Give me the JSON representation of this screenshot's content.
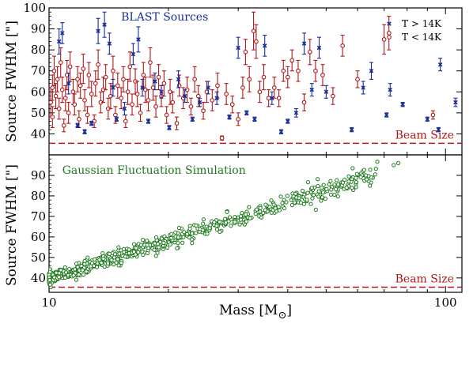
{
  "chart_data": [
    {
      "type": "scatter",
      "x_scale": "log",
      "xlim": [
        10,
        110
      ],
      "ylim": [
        30,
        100
      ],
      "ylabel": "Source FWHM [\"]",
      "yticks": [
        "40",
        "50",
        "60",
        "70",
        "80",
        "90",
        "100"
      ],
      "annotations": {
        "title_text": "BLAST Sources",
        "title_color": "#1a2c9a",
        "beam_label": "Beam Size",
        "beam_value": 35.5
      },
      "legend_position": "top-right",
      "series": [
        {
          "name": "T > 14K",
          "legend": "T > 14K",
          "color": "#1a2c9a",
          "marker": "x",
          "points": [
            [
              10.6,
              84,
              6
            ],
            [
              10.8,
              88,
              5
            ],
            [
              11.2,
              64,
              5
            ],
            [
              11.8,
              44,
              1
            ],
            [
              12.3,
              41,
              1
            ],
            [
              12.8,
              45,
              1
            ],
            [
              13.3,
              89,
              6
            ],
            [
              13.8,
              92,
              6
            ],
            [
              14.2,
              83,
              5
            ],
            [
              14.5,
              62,
              4
            ],
            [
              14.8,
              47,
              1
            ],
            [
              15.5,
              52,
              3
            ],
            [
              16.3,
              78,
              5
            ],
            [
              16.8,
              85,
              6
            ],
            [
              17.2,
              62,
              4
            ],
            [
              17.8,
              46,
              1
            ],
            [
              18.5,
              65,
              4
            ],
            [
              19.2,
              60,
              3
            ],
            [
              20.1,
              43,
              1
            ],
            [
              21.2,
              66,
              4
            ],
            [
              22.0,
              58,
              3
            ],
            [
              23.0,
              47,
              1
            ],
            [
              24.0,
              55,
              2
            ],
            [
              25.2,
              62,
              3
            ],
            [
              26.5,
              57,
              3
            ],
            [
              28.5,
              48,
              1
            ],
            [
              30.0,
              81,
              5
            ],
            [
              31.5,
              50,
              1
            ],
            [
              33.0,
              47,
              1
            ],
            [
              35.0,
              82,
              5
            ],
            [
              36.5,
              57,
              3
            ],
            [
              38.5,
              41,
              1
            ],
            [
              40.0,
              46,
              1
            ],
            [
              42.0,
              50,
              2
            ],
            [
              44.0,
              83,
              5
            ],
            [
              46.0,
              61,
              3
            ],
            [
              48.0,
              81,
              5
            ],
            [
              50.0,
              60,
              3
            ],
            [
              58.0,
              42,
              1
            ],
            [
              62.0,
              62,
              3
            ],
            [
              65.0,
              70,
              4
            ],
            [
              71.0,
              49,
              1
            ],
            [
              72.5,
              61,
              3
            ],
            [
              78.0,
              54,
              1
            ],
            [
              90.0,
              47,
              1
            ],
            [
              96.0,
              42,
              1
            ],
            [
              97.0,
              73,
              3
            ],
            [
              106.0,
              55,
              2
            ]
          ]
        },
        {
          "name": "T < 14K",
          "legend": "T < 14K",
          "color": "#b01818",
          "marker": "open-circle",
          "points": [
            [
              10.1,
              55,
              7
            ],
            [
              10.2,
              62,
              6
            ],
            [
              10.2,
              48,
              5
            ],
            [
              10.3,
              70,
              7
            ],
            [
              10.4,
              58,
              6
            ],
            [
              10.5,
              66,
              6
            ],
            [
              10.6,
              52,
              5
            ],
            [
              10.7,
              74,
              7
            ],
            [
              10.8,
              61,
              6
            ],
            [
              10.9,
              44,
              3
            ],
            [
              11.0,
              57,
              6
            ],
            [
              11.1,
              68,
              7
            ],
            [
              11.2,
              50,
              5
            ],
            [
              11.3,
              72,
              7
            ],
            [
              11.5,
              60,
              6
            ],
            [
              11.6,
              54,
              5
            ],
            [
              11.8,
              66,
              6
            ],
            [
              11.9,
              47,
              4
            ],
            [
              12.0,
              63,
              6
            ],
            [
              12.2,
              71,
              7
            ],
            [
              12.3,
              56,
              5
            ],
            [
              12.5,
              49,
              4
            ],
            [
              12.6,
              68,
              6
            ],
            [
              12.8,
              59,
              6
            ],
            [
              13.0,
              46,
              3
            ],
            [
              13.1,
              64,
              6
            ],
            [
              13.3,
              73,
              7
            ],
            [
              13.5,
              55,
              5
            ],
            [
              13.7,
              61,
              6
            ],
            [
              13.9,
              67,
              6
            ],
            [
              14.1,
              52,
              5
            ],
            [
              14.3,
              58,
              6
            ],
            [
              14.5,
              70,
              7
            ],
            [
              14.7,
              49,
              4
            ],
            [
              14.9,
              63,
              6
            ],
            [
              15.2,
              57,
              5
            ],
            [
              15.4,
              66,
              6
            ],
            [
              15.6,
              46,
              3
            ],
            [
              15.8,
              60,
              6
            ],
            [
              16.0,
              72,
              7
            ],
            [
              16.2,
              54,
              5
            ],
            [
              16.5,
              65,
              6
            ],
            [
              16.7,
              59,
              6
            ],
            [
              17.0,
              50,
              4
            ],
            [
              17.3,
              68,
              6
            ],
            [
              17.5,
              61,
              6
            ],
            [
              17.8,
              56,
              5
            ],
            [
              18.0,
              74,
              7
            ],
            [
              18.3,
              62,
              6
            ],
            [
              18.6,
              53,
              5
            ],
            [
              18.9,
              67,
              6
            ],
            [
              19.2,
              58,
              5
            ],
            [
              19.5,
              64,
              6
            ],
            [
              19.8,
              49,
              4
            ],
            [
              20.2,
              60,
              6
            ],
            [
              20.5,
              55,
              5
            ],
            [
              21.0,
              45,
              3
            ],
            [
              21.3,
              63,
              5
            ],
            [
              21.8,
              57,
              5
            ],
            [
              22.3,
              61,
              6
            ],
            [
              22.8,
              53,
              4
            ],
            [
              23.3,
              66,
              6
            ],
            [
              23.8,
              58,
              5
            ],
            [
              24.5,
              51,
              4
            ],
            [
              25.0,
              60,
              5
            ],
            [
              25.8,
              56,
              5
            ],
            [
              26.6,
              63,
              6
            ],
            [
              27.3,
              38,
              1
            ],
            [
              28.0,
              59,
              5
            ],
            [
              29.0,
              54,
              4
            ],
            [
              30.0,
              47,
              3
            ],
            [
              30.8,
              62,
              5
            ],
            [
              31.3,
              79,
              6
            ],
            [
              32.0,
              66,
              6
            ],
            [
              32.8,
              89,
              9
            ],
            [
              33.3,
              84,
              8
            ],
            [
              34.0,
              60,
              5
            ],
            [
              34.8,
              67,
              6
            ],
            [
              35.8,
              57,
              4
            ],
            [
              37.0,
              62,
              5
            ],
            [
              38.0,
              57,
              4
            ],
            [
              39.0,
              70,
              5
            ],
            [
              40.0,
              67,
              5
            ],
            [
              41.0,
              75,
              5
            ],
            [
              42.5,
              70,
              5
            ],
            [
              44.0,
              55,
              4
            ],
            [
              45.5,
              79,
              6
            ],
            [
              47.0,
              70,
              5
            ],
            [
              49.0,
              68,
              5
            ],
            [
              52.0,
              58,
              4
            ],
            [
              55.0,
              82,
              5
            ],
            [
              60.0,
              66,
              4
            ],
            [
              70.0,
              85,
              7
            ],
            [
              72.0,
              88,
              8
            ],
            [
              93.0,
              49,
              2
            ]
          ]
        }
      ]
    },
    {
      "type": "scatter",
      "x_scale": "log",
      "xlim": [
        10,
        110
      ],
      "ylim": [
        33,
        100
      ],
      "xlabel": "Mass [M",
      "xlabel_sub": "⊙",
      "xlabel_close": "]",
      "ylabel": "Source FWHM [\"]",
      "yticks": [
        "40",
        "50",
        "60",
        "70",
        "80",
        "90"
      ],
      "xticks": [
        "10",
        "100"
      ],
      "annotations": {
        "title_text": "Gaussian Fluctuation Simulation",
        "title_color": "#1f7a1f",
        "beam_label": "Beam Size",
        "beam_value": 35.5
      },
      "series": [
        {
          "color": "#1f7a1f",
          "marker": "open-circle",
          "trend": {
            "x0": 10,
            "y0": 39.5,
            "x1": 70,
            "y1": 92
          },
          "outliers": [
            [
              63,
              90
            ],
            [
              65,
              89
            ],
            [
              74,
              95
            ],
            [
              76,
              96
            ],
            [
              57,
              87
            ]
          ]
        }
      ]
    }
  ]
}
